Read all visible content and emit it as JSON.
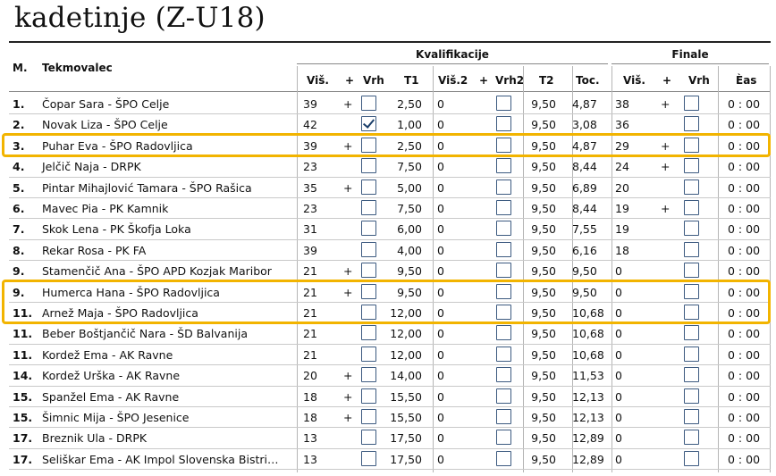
{
  "title": "kadetinje (Z-U18)",
  "headers": {
    "groups": {
      "qual": "Kvalifikacije",
      "final": "Finale"
    },
    "rank": "M.",
    "competitor": "Tekmovalec",
    "qual": {
      "height": "Viš.",
      "plus": "+",
      "top": "Vrh",
      "t1": "T1",
      "height2": "Viš.2",
      "plus2": "+",
      "top2": "Vrh2",
      "t2": "T2",
      "points": "Toc."
    },
    "final": {
      "height": "Viš.",
      "plus": "+",
      "top": "Vrh",
      "time": "Èas"
    }
  },
  "colors": {
    "highlight": "#f2b400",
    "checkbox": "#3c5a80"
  },
  "rows": [
    {
      "rank": "1.",
      "name": "Čopar Sara - ŠPO Celje",
      "h": "39",
      "p": "+",
      "top": false,
      "t1": "2,50",
      "h2": "0",
      "p2": "",
      "top2": false,
      "t2": "9,50",
      "toc": "4,87",
      "fh": "38",
      "fp": "+",
      "ftop": false,
      "time": "0 : 00"
    },
    {
      "rank": "2.",
      "name": "Novak Liza - ŠPO Celje",
      "h": "42",
      "p": "",
      "top": true,
      "t1": "1,00",
      "h2": "0",
      "p2": "",
      "top2": false,
      "t2": "9,50",
      "toc": "3,08",
      "fh": "36",
      "fp": "",
      "ftop": false,
      "time": "0 : 00"
    },
    {
      "rank": "3.",
      "name": "Puhar Eva - ŠPO Radovljica",
      "h": "39",
      "p": "+",
      "top": false,
      "t1": "2,50",
      "h2": "0",
      "p2": "",
      "top2": false,
      "t2": "9,50",
      "toc": "4,87",
      "fh": "29",
      "fp": "+",
      "ftop": false,
      "time": "0 : 00"
    },
    {
      "rank": "4.",
      "name": "Jelčič Naja - DRPK",
      "h": "23",
      "p": "",
      "top": false,
      "t1": "7,50",
      "h2": "0",
      "p2": "",
      "top2": false,
      "t2": "9,50",
      "toc": "8,44",
      "fh": "24",
      "fp": "+",
      "ftop": false,
      "time": "0 : 00"
    },
    {
      "rank": "5.",
      "name": "Pintar Mihajlović Tamara - ŠPO Rašica",
      "h": "35",
      "p": "+",
      "top": false,
      "t1": "5,00",
      "h2": "0",
      "p2": "",
      "top2": false,
      "t2": "9,50",
      "toc": "6,89",
      "fh": "20",
      "fp": "",
      "ftop": false,
      "time": "0 : 00"
    },
    {
      "rank": "6.",
      "name": "Mavec Pia - PK Kamnik",
      "h": "23",
      "p": "",
      "top": false,
      "t1": "7,50",
      "h2": "0",
      "p2": "",
      "top2": false,
      "t2": "9,50",
      "toc": "8,44",
      "fh": "19",
      "fp": "+",
      "ftop": false,
      "time": "0 : 00"
    },
    {
      "rank": "7.",
      "name": "Skok Lena - PK Škofja Loka",
      "h": "31",
      "p": "",
      "top": false,
      "t1": "6,00",
      "h2": "0",
      "p2": "",
      "top2": false,
      "t2": "9,50",
      "toc": "7,55",
      "fh": "19",
      "fp": "",
      "ftop": false,
      "time": "0 : 00"
    },
    {
      "rank": "8.",
      "name": "Rekar Rosa - PK FA",
      "h": "39",
      "p": "",
      "top": false,
      "t1": "4,00",
      "h2": "0",
      "p2": "",
      "top2": false,
      "t2": "9,50",
      "toc": "6,16",
      "fh": "18",
      "fp": "",
      "ftop": false,
      "time": "0 : 00"
    },
    {
      "rank": "9.",
      "name": "Stamenčič Ana - ŠPO APD Kozjak Maribor",
      "h": "21",
      "p": "+",
      "top": false,
      "t1": "9,50",
      "h2": "0",
      "p2": "",
      "top2": false,
      "t2": "9,50",
      "toc": "9,50",
      "fh": "0",
      "fp": "",
      "ftop": false,
      "time": "0 : 00"
    },
    {
      "rank": "9.",
      "name": "Humerca Hana - ŠPO Radovljica",
      "h": "21",
      "p": "+",
      "top": false,
      "t1": "9,50",
      "h2": "0",
      "p2": "",
      "top2": false,
      "t2": "9,50",
      "toc": "9,50",
      "fh": "0",
      "fp": "",
      "ftop": false,
      "time": "0 : 00"
    },
    {
      "rank": "11.",
      "name": "Arnež Maja - ŠPO Radovljica",
      "h": "21",
      "p": "",
      "top": false,
      "t1": "12,00",
      "h2": "0",
      "p2": "",
      "top2": false,
      "t2": "9,50",
      "toc": "10,68",
      "fh": "0",
      "fp": "",
      "ftop": false,
      "time": "0 : 00"
    },
    {
      "rank": "11.",
      "name": "Beber Boštjančič Nara - ŠD Balvanija",
      "h": "21",
      "p": "",
      "top": false,
      "t1": "12,00",
      "h2": "0",
      "p2": "",
      "top2": false,
      "t2": "9,50",
      "toc": "10,68",
      "fh": "0",
      "fp": "",
      "ftop": false,
      "time": "0 : 00"
    },
    {
      "rank": "11.",
      "name": "Kordež Ema - AK Ravne",
      "h": "21",
      "p": "",
      "top": false,
      "t1": "12,00",
      "h2": "0",
      "p2": "",
      "top2": false,
      "t2": "9,50",
      "toc": "10,68",
      "fh": "0",
      "fp": "",
      "ftop": false,
      "time": "0 : 00"
    },
    {
      "rank": "14.",
      "name": "Kordež Urška - AK Ravne",
      "h": "20",
      "p": "+",
      "top": false,
      "t1": "14,00",
      "h2": "0",
      "p2": "",
      "top2": false,
      "t2": "9,50",
      "toc": "11,53",
      "fh": "0",
      "fp": "",
      "ftop": false,
      "time": "0 : 00"
    },
    {
      "rank": "15.",
      "name": "Spanžel Ema - AK Ravne",
      "h": "18",
      "p": "+",
      "top": false,
      "t1": "15,50",
      "h2": "0",
      "p2": "",
      "top2": false,
      "t2": "9,50",
      "toc": "12,13",
      "fh": "0",
      "fp": "",
      "ftop": false,
      "time": "0 : 00"
    },
    {
      "rank": "15.",
      "name": "Šimnic Mija - ŠPO Jesenice",
      "h": "18",
      "p": "+",
      "top": false,
      "t1": "15,50",
      "h2": "0",
      "p2": "",
      "top2": false,
      "t2": "9,50",
      "toc": "12,13",
      "fh": "0",
      "fp": "",
      "ftop": false,
      "time": "0 : 00"
    },
    {
      "rank": "17.",
      "name": "Breznik Ula - DRPK",
      "h": "13",
      "p": "",
      "top": false,
      "t1": "17,50",
      "h2": "0",
      "p2": "",
      "top2": false,
      "t2": "9,50",
      "toc": "12,89",
      "fh": "0",
      "fp": "",
      "ftop": false,
      "time": "0 : 00"
    },
    {
      "rank": "17.",
      "name": "Seliškar Ema - AK Impol Slovenska Bistri…",
      "h": "13",
      "p": "",
      "top": false,
      "t1": "17,50",
      "h2": "0",
      "p2": "",
      "top2": false,
      "t2": "9,50",
      "toc": "12,89",
      "fh": "0",
      "fp": "",
      "ftop": false,
      "time": "0 : 00"
    }
  ],
  "highlighted_rows": [
    2,
    9,
    10
  ]
}
